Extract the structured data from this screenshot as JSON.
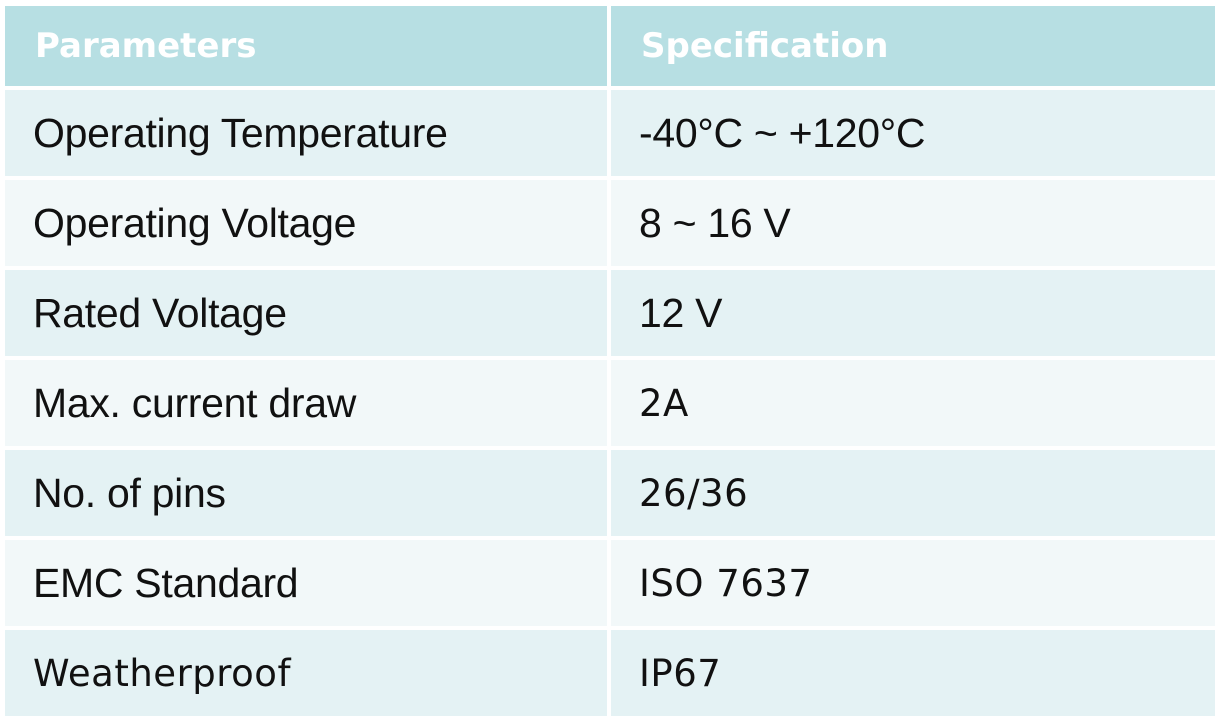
{
  "table": {
    "headers": [
      "Parameters",
      "Specification"
    ],
    "rows": [
      {
        "parameter": "Operating Temperature",
        "specification": "-40°C ~ +120°C"
      },
      {
        "parameter": "Operating Voltage",
        "specification": "8 ~ 16 V"
      },
      {
        "parameter": "Rated Voltage",
        "specification": "12 V"
      },
      {
        "parameter": "Max. current draw",
        "specification": "2A"
      },
      {
        "parameter": "No. of pins",
        "specification": "26/36"
      },
      {
        "parameter": "EMC Standard",
        "specification": "ISO 7637"
      },
      {
        "parameter": "Weatherproof",
        "specification": "IP67"
      }
    ]
  },
  "colors": {
    "header_bg": "#b7dfe3",
    "header_text": "#ffffff",
    "row_odd_bg": "#e4f2f4",
    "row_even_bg": "#f2f8f9",
    "body_text": "#111111"
  }
}
